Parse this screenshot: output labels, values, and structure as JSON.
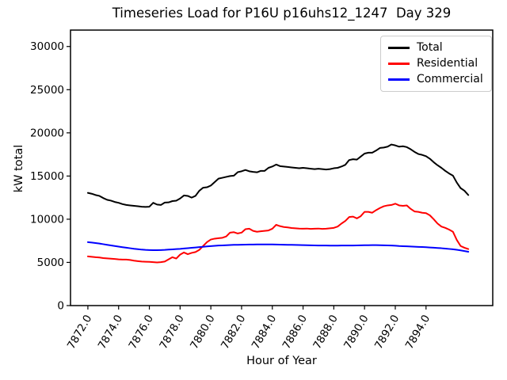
{
  "header": {
    "title": "Timeseries Load for P16U p16uhs12_1247  Day 329"
  },
  "chart_data": {
    "type": "line",
    "title": "Timeseries Load for P16U p16uhs12_1247  Day 329",
    "xlabel": "Hour of Year",
    "ylabel": "kW total",
    "grid": false,
    "legend_position": "upper-right",
    "xlim": [
      7870.87,
      7898.34
    ],
    "ylim": [
      0,
      31900
    ],
    "x_ticks": [
      7872,
      7874,
      7876,
      7878,
      7880,
      7882,
      7884,
      7886,
      7888,
      7890,
      7892,
      7894
    ],
    "x_tick_labels": [
      "7872.0",
      "7874.0",
      "7876.0",
      "7878.0",
      "7880.0",
      "7882.0",
      "7884.0",
      "7886.0",
      "7888.0",
      "7890.0",
      "7892.0",
      "7894.0"
    ],
    "x_tick_rotation_deg": 60,
    "y_ticks": [
      0,
      5000,
      10000,
      15000,
      20000,
      25000,
      30000
    ],
    "y_tick_labels": [
      "0",
      "5000",
      "10000",
      "15000",
      "20000",
      "25000",
      "30000"
    ],
    "x_start": 7872.0,
    "x_step": 0.25,
    "series": [
      {
        "name": "Total",
        "color": "#000000",
        "values": [
          13050,
          12950,
          12800,
          12700,
          12450,
          12250,
          12150,
          12000,
          11900,
          11750,
          11650,
          11600,
          11550,
          11500,
          11450,
          11420,
          11450,
          11900,
          11700,
          11650,
          11930,
          11950,
          12100,
          12150,
          12400,
          12750,
          12700,
          12500,
          12700,
          13300,
          13650,
          13700,
          13900,
          14300,
          14700,
          14800,
          14900,
          15000,
          15050,
          15450,
          15550,
          15700,
          15550,
          15480,
          15430,
          15600,
          15600,
          15950,
          16100,
          16330,
          16150,
          16100,
          16050,
          16000,
          15950,
          15900,
          15950,
          15900,
          15850,
          15800,
          15850,
          15800,
          15750,
          15800,
          15900,
          15950,
          16100,
          16300,
          16850,
          16950,
          16900,
          17250,
          17600,
          17700,
          17700,
          17950,
          18250,
          18300,
          18400,
          18650,
          18550,
          18400,
          18450,
          18350,
          18100,
          17800,
          17550,
          17450,
          17300,
          17000,
          16600,
          16250,
          15950,
          15600,
          15300,
          15050,
          14250,
          13600,
          13300,
          12800
        ]
      },
      {
        "name": "Residential",
        "color": "#ff0000",
        "values": [
          5700,
          5650,
          5600,
          5570,
          5500,
          5470,
          5430,
          5400,
          5350,
          5330,
          5330,
          5280,
          5200,
          5150,
          5100,
          5080,
          5060,
          5030,
          5000,
          5030,
          5100,
          5350,
          5600,
          5450,
          5900,
          6150,
          5950,
          6100,
          6200,
          6450,
          6900,
          7350,
          7650,
          7750,
          7800,
          7850,
          8000,
          8450,
          8500,
          8350,
          8450,
          8850,
          8900,
          8650,
          8550,
          8600,
          8650,
          8700,
          8900,
          9350,
          9200,
          9100,
          9050,
          8980,
          8950,
          8920,
          8900,
          8920,
          8880,
          8900,
          8920,
          8880,
          8900,
          8950,
          9000,
          9150,
          9500,
          9800,
          10250,
          10300,
          10100,
          10350,
          10850,
          10850,
          10750,
          11050,
          11300,
          11500,
          11600,
          11650,
          11800,
          11600,
          11550,
          11600,
          11200,
          10900,
          10850,
          10750,
          10700,
          10450,
          10000,
          9500,
          9150,
          9000,
          8800,
          8550,
          7600,
          6900,
          6700,
          6550
        ]
      },
      {
        "name": "Commercial",
        "color": "#0000ff",
        "values": [
          7350,
          7300,
          7240,
          7180,
          7110,
          7040,
          6970,
          6900,
          6830,
          6760,
          6700,
          6640,
          6580,
          6530,
          6480,
          6450,
          6430,
          6420,
          6420,
          6430,
          6450,
          6480,
          6510,
          6540,
          6570,
          6610,
          6650,
          6690,
          6730,
          6770,
          6810,
          6850,
          6890,
          6920,
          6950,
          6970,
          6990,
          7010,
          7030,
          7040,
          7050,
          7060,
          7070,
          7070,
          7080,
          7080,
          7080,
          7080,
          7080,
          7070,
          7060,
          7050,
          7040,
          7030,
          7020,
          7010,
          7000,
          6990,
          6980,
          6970,
          6960,
          6950,
          6950,
          6940,
          6940,
          6940,
          6950,
          6950,
          6960,
          6960,
          6970,
          6980,
          6990,
          6990,
          7000,
          7000,
          6990,
          6980,
          6970,
          6950,
          6930,
          6900,
          6880,
          6860,
          6840,
          6820,
          6800,
          6780,
          6760,
          6730,
          6700,
          6670,
          6640,
          6600,
          6560,
          6520,
          6460,
          6390,
          6310,
          6230
        ]
      }
    ]
  }
}
